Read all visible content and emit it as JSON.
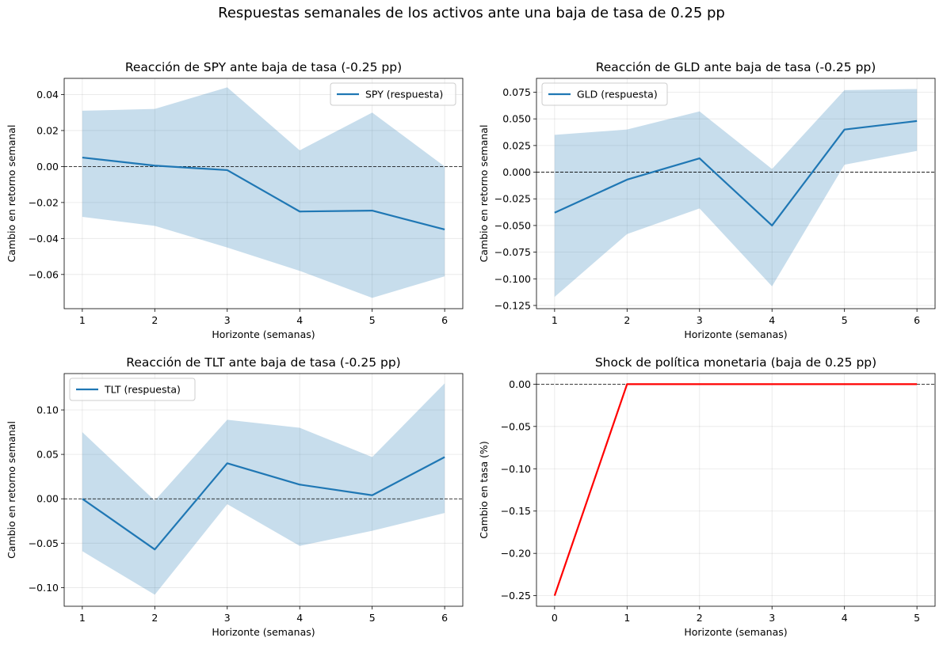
{
  "suptitle": "Respuestas semanales de los activos ante una baja de tasa de 0.25 pp",
  "chart_data": [
    {
      "type": "line",
      "title": "Reacción de SPY ante baja de tasa (-0.25 pp)",
      "xlabel": "Horizonte (semanas)",
      "ylabel": "Cambio en retorno semanal",
      "x": [
        1,
        2,
        3,
        4,
        5,
        6
      ],
      "xticks": [
        "1",
        "2",
        "3",
        "4",
        "5",
        "6"
      ],
      "yticks": [
        "0.04",
        "0.02",
        "0.00",
        "−0.02",
        "−0.04",
        "−0.06"
      ],
      "ylim": [
        -0.079,
        0.049
      ],
      "xlim": [
        0.75,
        6.25
      ],
      "grid": true,
      "legend": "upper right",
      "series": [
        {
          "name": "SPY (respuesta)",
          "color": "#1f77b4",
          "values": [
            0.005,
            0.0005,
            -0.002,
            -0.025,
            -0.0245,
            -0.035
          ],
          "lower": [
            -0.028,
            -0.033,
            -0.045,
            -0.058,
            -0.073,
            -0.061
          ],
          "upper": [
            0.031,
            0.032,
            0.044,
            0.009,
            0.03,
            0.0
          ]
        }
      ],
      "zero_line": 0
    },
    {
      "type": "line",
      "title": "Reacción de GLD ante baja de tasa (-0.25 pp)",
      "xlabel": "Horizonte (semanas)",
      "ylabel": "Cambio en retorno semanal",
      "x": [
        1,
        2,
        3,
        4,
        5,
        6
      ],
      "xticks": [
        "1",
        "2",
        "3",
        "4",
        "5",
        "6"
      ],
      "yticks": [
        "0.075",
        "0.050",
        "0.025",
        "0.000",
        "−0.025",
        "−0.050",
        "−0.075",
        "−0.100",
        "−0.125"
      ],
      "ylim": [
        -0.128,
        0.088
      ],
      "xlim": [
        0.75,
        6.25
      ],
      "grid": true,
      "legend": "upper left",
      "series": [
        {
          "name": "GLD (respuesta)",
          "color": "#1f77b4",
          "values": [
            -0.038,
            -0.007,
            0.013,
            -0.05,
            0.04,
            0.048
          ],
          "lower": [
            -0.117,
            -0.058,
            -0.034,
            -0.107,
            0.007,
            0.02
          ],
          "upper": [
            0.035,
            0.04,
            0.057,
            0.003,
            0.077,
            0.078
          ]
        }
      ],
      "zero_line": 0
    },
    {
      "type": "line",
      "title": "Reacción de TLT ante baja de tasa (-0.25 pp)",
      "xlabel": "Horizonte (semanas)",
      "ylabel": "Cambio en retorno semanal",
      "x": [
        1,
        2,
        3,
        4,
        5,
        6
      ],
      "xticks": [
        "1",
        "2",
        "3",
        "4",
        "5",
        "6"
      ],
      "yticks": [
        "0.10",
        "0.05",
        "0.00",
        "−0.05",
        "−0.10"
      ],
      "ylim": [
        -0.121,
        0.141
      ],
      "xlim": [
        0.75,
        6.25
      ],
      "grid": true,
      "legend": "upper left",
      "series": [
        {
          "name": "TLT (respuesta)",
          "color": "#1f77b4",
          "values": [
            0.0,
            -0.057,
            0.04,
            0.016,
            0.004,
            0.047
          ],
          "lower": [
            -0.059,
            -0.108,
            -0.006,
            -0.053,
            -0.036,
            -0.016
          ],
          "upper": [
            0.075,
            -0.002,
            0.089,
            0.08,
            0.047,
            0.13
          ]
        }
      ],
      "zero_line": 0
    },
    {
      "type": "line",
      "title": "Shock de política monetaria (baja de 0.25 pp)",
      "xlabel": "Horizonte (semanas)",
      "ylabel": "Cambio en tasa (%)",
      "x": [
        0,
        1,
        2,
        3,
        4,
        5
      ],
      "xticks": [
        "0",
        "1",
        "2",
        "3",
        "4",
        "5"
      ],
      "yticks": [
        "0.00",
        "−0.05",
        "−0.10",
        "−0.15",
        "−0.20",
        "−0.25"
      ],
      "ylim": [
        -0.2625,
        0.0125
      ],
      "xlim": [
        -0.25,
        5.25
      ],
      "grid": true,
      "legend": "none",
      "series": [
        {
          "color": "#ff0000",
          "values": [
            -0.25,
            0.0,
            0.0,
            0.0,
            0.0,
            0.0
          ]
        }
      ],
      "zero_line": 0
    }
  ]
}
